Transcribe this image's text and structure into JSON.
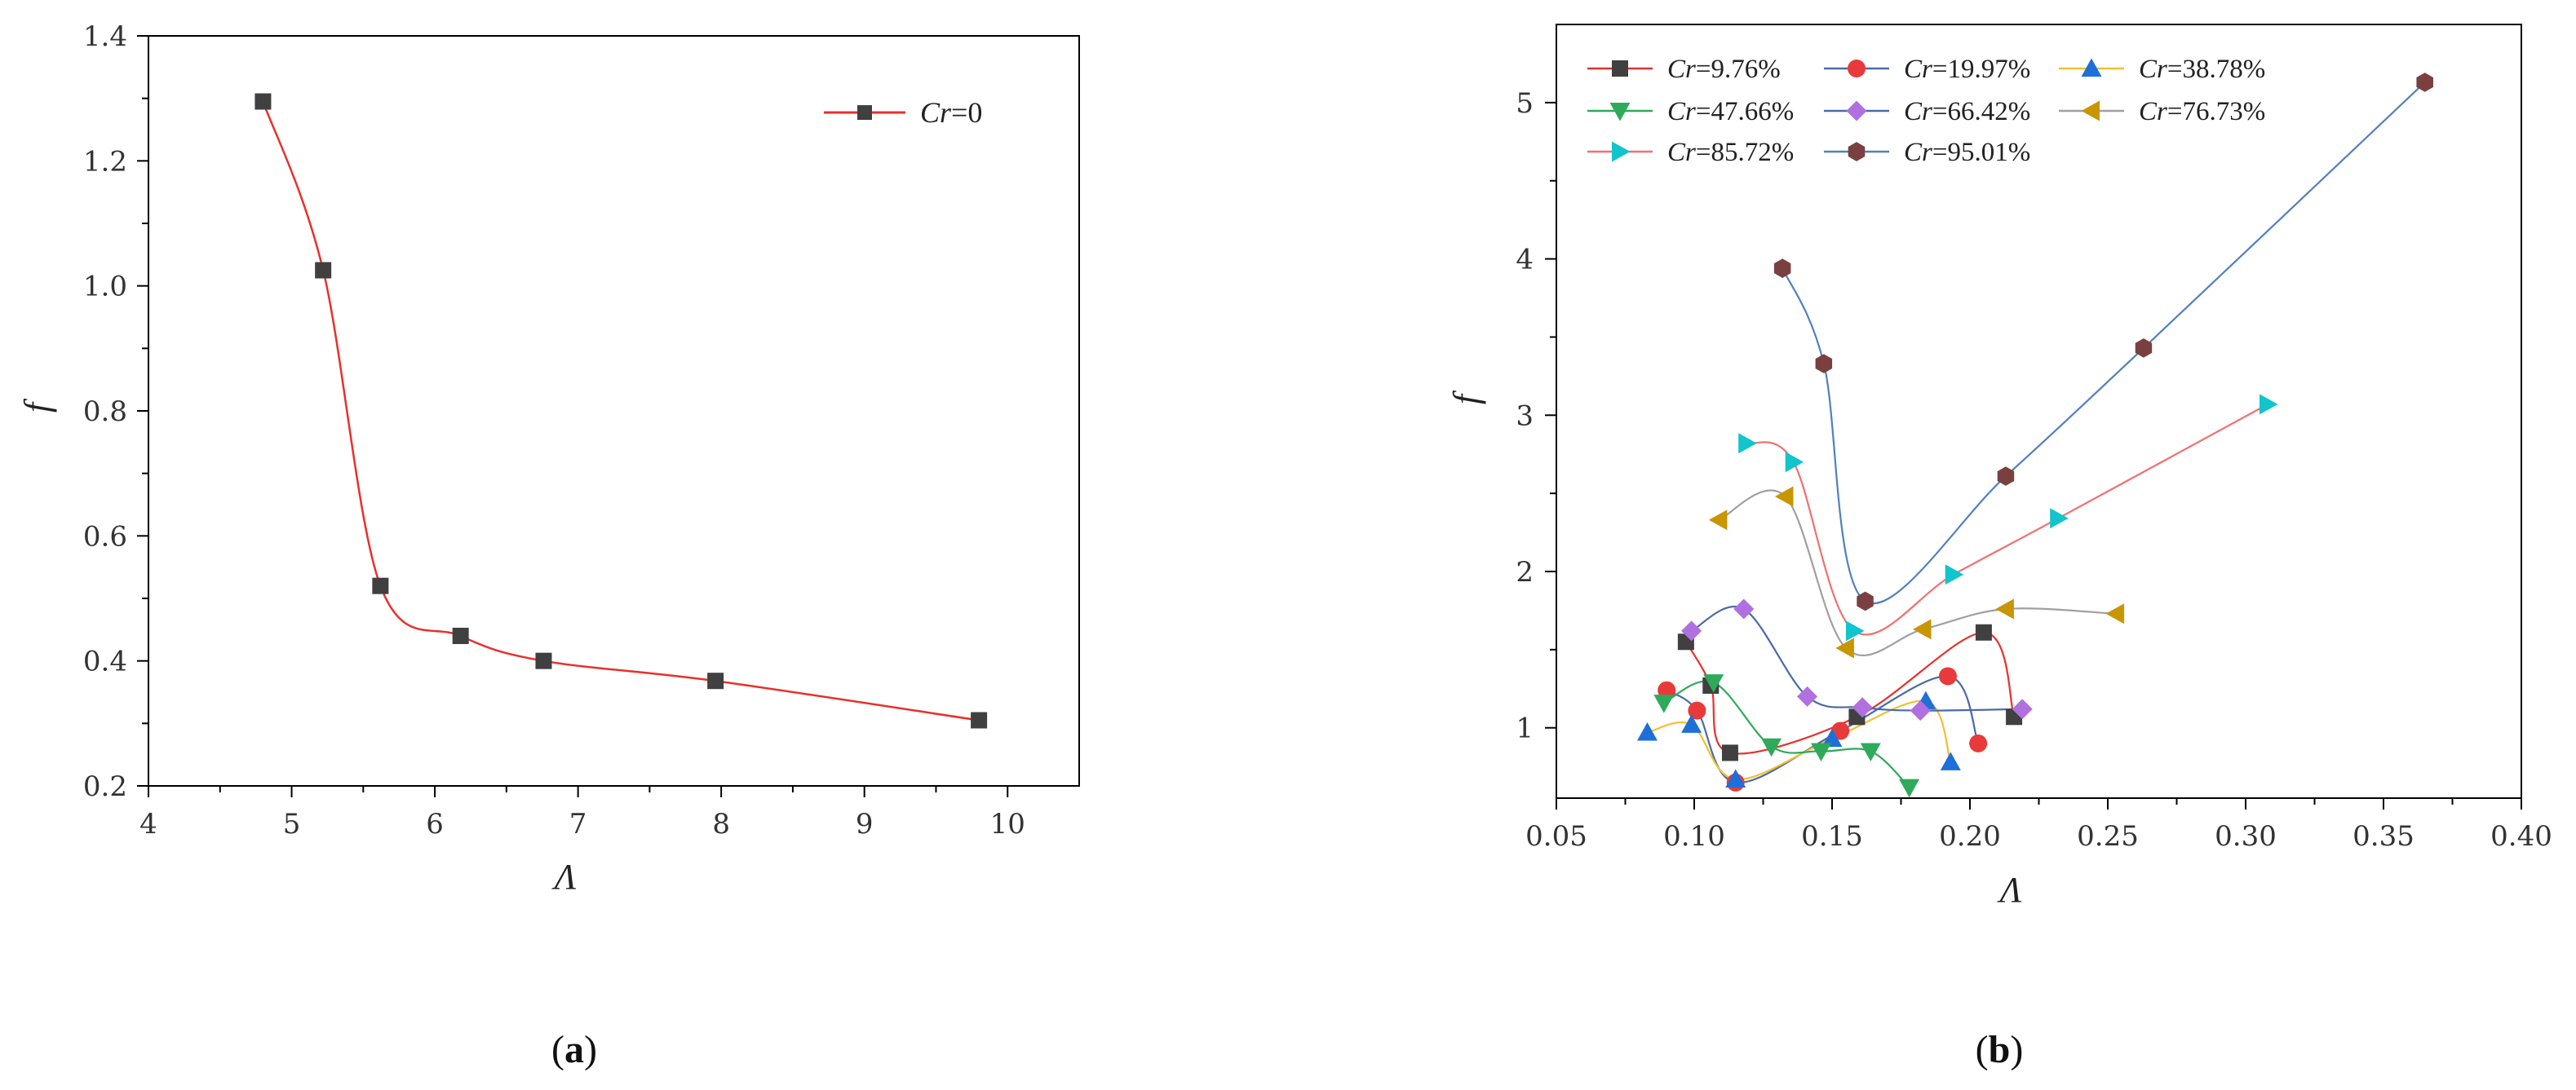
{
  "captions": {
    "a_letter": "a",
    "b_letter": "b",
    "open": "(",
    "close": ")"
  },
  "chart_data": [
    {
      "id": "a",
      "type": "line",
      "xlabel": "Λ",
      "ylabel": "f",
      "xlim": [
        4,
        10.5
      ],
      "ylim": [
        0.2,
        1.4
      ],
      "xticks": [
        4,
        5,
        6,
        7,
        8,
        9,
        10
      ],
      "yticks": [
        0.2,
        0.4,
        0.6,
        0.8,
        1.0,
        1.2,
        1.4
      ],
      "ytick_labels": [
        "0.2",
        "0.4",
        "0.6",
        "0.8",
        "1.0",
        "1.2",
        "1.4"
      ],
      "xtick_labels": [
        "4",
        "5",
        "6",
        "7",
        "8",
        "9",
        "10"
      ],
      "legend_position": "top-right",
      "series": [
        {
          "name_var": "Cr",
          "name_val": "=0",
          "color": "#e8302a",
          "marker": "square",
          "marker_color": "#404040",
          "x": [
            4.8,
            5.22,
            5.62,
            6.18,
            6.76,
            7.96,
            9.8
          ],
          "y": [
            1.295,
            1.025,
            0.52,
            0.44,
            0.4,
            0.368,
            0.305
          ]
        }
      ]
    },
    {
      "id": "b",
      "type": "line",
      "xlabel": "Λ",
      "ylabel": "f",
      "xlim": [
        0.05,
        0.4
      ],
      "ylim": [
        0.55,
        5.5
      ],
      "xticks": [
        0.05,
        0.1,
        0.15,
        0.2,
        0.25,
        0.3,
        0.35,
        0.4
      ],
      "xtick_labels": [
        "0.05",
        "0.10",
        "0.15",
        "0.20",
        "0.25",
        "0.30",
        "0.35",
        "0.40"
      ],
      "yticks": [
        1,
        2,
        3,
        4,
        5
      ],
      "ytick_labels": [
        "1",
        "2",
        "3",
        "4",
        "5"
      ],
      "legend_position": "top-left",
      "series": [
        {
          "name_var": "Cr",
          "name_val": "=9.76%",
          "color": "#e8302a",
          "marker": "square",
          "marker_color": "#404040",
          "x": [
            0.097,
            0.106,
            0.113,
            0.159,
            0.205,
            0.216
          ],
          "y": [
            1.55,
            1.27,
            0.84,
            1.07,
            1.61,
            1.07
          ]
        },
        {
          "name_var": "Cr",
          "name_val": "=19.97%",
          "color": "#4a6aaa",
          "marker": "circle",
          "marker_color": "#e83a3a",
          "x": [
            0.09,
            0.101,
            0.115,
            0.153,
            0.192,
            0.203
          ],
          "y": [
            1.24,
            1.11,
            0.65,
            0.98,
            1.33,
            0.9
          ]
        },
        {
          "name_var": "Cr",
          "name_val": "=38.78%",
          "color": "#f0c030",
          "marker": "triangle-up",
          "marker_color": "#1f6fd8",
          "x": [
            0.083,
            0.099,
            0.115,
            0.15,
            0.184,
            0.193
          ],
          "y": [
            0.97,
            1.02,
            0.67,
            0.93,
            1.17,
            0.78
          ]
        },
        {
          "name_var": "Cr",
          "name_val": "=47.66%",
          "color": "#2eaa5a",
          "marker": "triangle-down",
          "marker_color": "#2eaa5a",
          "x": [
            0.089,
            0.107,
            0.128,
            0.146,
            0.164,
            0.178
          ],
          "y": [
            1.16,
            1.29,
            0.88,
            0.85,
            0.85,
            0.62
          ]
        },
        {
          "name_var": "Cr",
          "name_val": "=66.42%",
          "color": "#4a6aaa",
          "marker": "diamond",
          "marker_color": "#b070e0",
          "x": [
            0.099,
            0.118,
            0.141,
            0.161,
            0.182,
            0.219
          ],
          "y": [
            1.62,
            1.76,
            1.2,
            1.13,
            1.11,
            1.12
          ]
        },
        {
          "name_var": "Cr",
          "name_val": "=76.73%",
          "color": "#a0a0a0",
          "marker": "triangle-left",
          "marker_color": "#c89600",
          "x": [
            0.109,
            0.133,
            0.155,
            0.183,
            0.213,
            0.253
          ],
          "y": [
            2.33,
            2.48,
            1.51,
            1.63,
            1.76,
            1.73
          ]
        },
        {
          "name_var": "Cr",
          "name_val": "=85.72%",
          "color": "#f07070",
          "marker": "triangle-right",
          "marker_color": "#12c4cc",
          "x": [
            0.119,
            0.136,
            0.158,
            0.194,
            0.232,
            0.308
          ],
          "y": [
            2.82,
            2.7,
            1.62,
            1.98,
            2.34,
            3.07
          ]
        },
        {
          "name_var": "Cr",
          "name_val": "=95.01%",
          "color": "#5080c0",
          "marker": "hexagon",
          "marker_color": "#7a4040",
          "x": [
            0.132,
            0.147,
            0.162,
            0.213,
            0.263,
            0.365
          ],
          "y": [
            3.94,
            3.33,
            1.81,
            2.61,
            3.43,
            5.13
          ]
        }
      ]
    }
  ]
}
